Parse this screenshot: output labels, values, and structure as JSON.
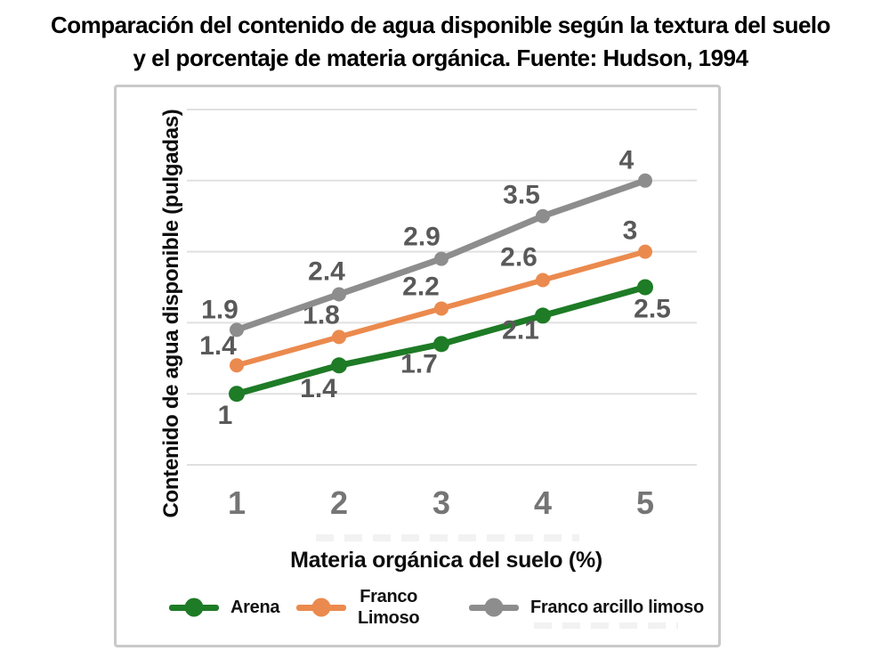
{
  "page": {
    "title_line1": "Comparación del contenido de agua disponible según la textura del suelo",
    "title_line2": "y el porcentaje de materia orgánica. Fuente: Hudson, 1994"
  },
  "chart_data": {
    "type": "line",
    "x": [
      1,
      2,
      3,
      4,
      5
    ],
    "x_tick_labels": [
      "1",
      "2",
      "3",
      "4",
      "5"
    ],
    "xlabel": "Materia orgánica del suelo (%)",
    "ylabel": "Contenido de agua disponible (pulgadas)",
    "ylim": [
      0,
      5
    ],
    "y_gridline_values": [
      0,
      1,
      2,
      3,
      4,
      5
    ],
    "grid": "horizontal-only",
    "legend_position": "bottom",
    "colors": {
      "data_label_text": "#595959",
      "tick_text": "#757575",
      "axis_title_text": "#0d0d0d"
    },
    "series": [
      {
        "name": "Arena",
        "legend_display": "Arena",
        "color": "#1e7b26",
        "values": [
          1,
          1.4,
          1.7,
          2.1,
          2.5
        ],
        "point_labels": [
          "1",
          "1.4",
          "1.7",
          "2.1",
          "2.5"
        ],
        "label_position": "below",
        "label_offsets": [
          [
            -13,
            26
          ],
          [
            -23,
            28
          ],
          [
            -25,
            24
          ],
          [
            -25,
            18
          ],
          [
            8,
            26
          ]
        ]
      },
      {
        "name": "Franco Limoso",
        "legend_display": "Franco\nLimoso",
        "color": "#eb8a4e",
        "values": [
          1.4,
          1.8,
          2.2,
          2.6,
          3
        ],
        "point_labels": [
          "1.4",
          "1.8",
          "2.2",
          "2.6",
          "3"
        ],
        "label_position": "above",
        "label_offsets": [
          [
            -21,
            -20
          ],
          [
            -20,
            -23
          ],
          [
            -23,
            -23
          ],
          [
            -27,
            -24
          ],
          [
            -17,
            -22
          ]
        ]
      },
      {
        "name": "Franco arcillo limoso",
        "legend_display": "Franco arcillo limoso",
        "color": "#8d8d8d",
        "values": [
          1.9,
          2.4,
          2.9,
          3.5,
          4
        ],
        "point_labels": [
          "1.9",
          "2.4",
          "2.9",
          "3.5",
          "4"
        ],
        "label_position": "above",
        "label_offsets": [
          [
            -19,
            -21
          ],
          [
            -14,
            -24
          ],
          [
            -22,
            -23
          ],
          [
            -24,
            -22
          ],
          [
            -21,
            -21
          ]
        ]
      }
    ]
  }
}
